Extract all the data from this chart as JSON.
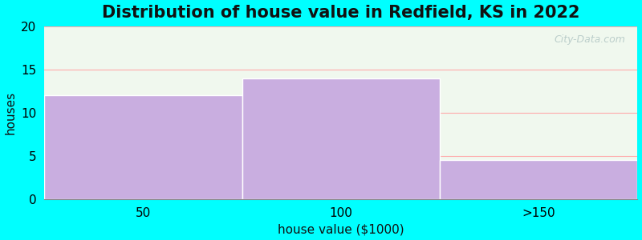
{
  "title": "Distribution of house value in Redfield, KS in 2022",
  "xlabel": "house value ($1000)",
  "ylabel": "houses",
  "categories": [
    "50",
    "100",
    ">150"
  ],
  "values": [
    12,
    14,
    4.5
  ],
  "bar_color": "#c9aee0",
  "bar_edgecolor": "#ffffff",
  "background_outer": "#00ffff",
  "background_inner": "#f0f8ee",
  "ylim": [
    0,
    20
  ],
  "yticks": [
    0,
    5,
    10,
    15,
    20
  ],
  "title_fontsize": 15,
  "axis_label_fontsize": 11,
  "tick_fontsize": 11,
  "watermark": "City-Data.com",
  "grid_color": "#ffaaaa",
  "n_bars": 3
}
